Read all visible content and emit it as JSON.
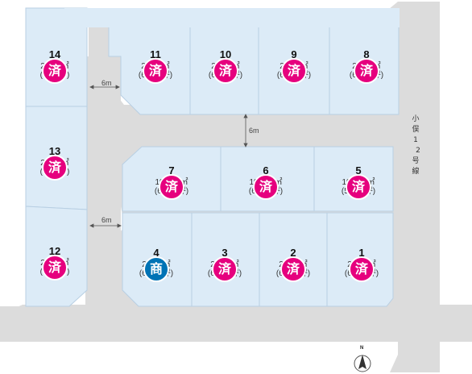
{
  "colors": {
    "lot_fill": "#dcebf7",
    "lot_stroke": "#b8cfe3",
    "road": "#dcdcdc",
    "sold_badge": "#e6007e",
    "commercial_badge": "#0073b5"
  },
  "road_labels": {
    "west_road": "6m",
    "lower_west_road": "6m",
    "center_road": "6m"
  },
  "street_name": [
    "小",
    "俣",
    "1",
    "2",
    "号",
    "線"
  ],
  "compass": {
    "label": "N",
    "icon": "north-arrow-icon"
  },
  "lots": [
    {
      "number": "14",
      "area_line1": "2　　㎡",
      "area_line2": "(　　坪)",
      "status": "済",
      "status_type": "sold"
    },
    {
      "number": "13",
      "area_line1": "2　　㎡",
      "area_line2": "(　　坪)",
      "status": "済",
      "status_type": "sold"
    },
    {
      "number": "12",
      "area_line1": "2　　㎡",
      "area_line2": "(　　坪)",
      "status": "済",
      "status_type": "sold"
    },
    {
      "number": "11",
      "area_line1": "2　　㎡",
      "area_line2": "(6　　坪)",
      "status": "済",
      "status_type": "sold"
    },
    {
      "number": "10",
      "area_line1": "2　　㎡",
      "area_line2": "(6　　坪)",
      "status": "済",
      "status_type": "sold"
    },
    {
      "number": "9",
      "area_line1": "2　　㎡",
      "area_line2": "(6　　坪)",
      "status": "済",
      "status_type": "sold"
    },
    {
      "number": "8",
      "area_line1": "2　　㎡",
      "area_line2": "(6　　坪)",
      "status": "済",
      "status_type": "sold"
    },
    {
      "number": "7",
      "area_line1": "19　　㎡",
      "area_line2": "(6　　坪)",
      "status": "済",
      "status_type": "sold"
    },
    {
      "number": "6",
      "area_line1": "19　　㎡",
      "area_line2": "(6　　坪)",
      "status": "済",
      "status_type": "sold"
    },
    {
      "number": "5",
      "area_line1": "19　　㎡",
      "area_line2": "(5　　坪)",
      "status": "済",
      "status_type": "sold"
    },
    {
      "number": "4",
      "area_line1": "2　　㎡",
      "area_line2": "(6　　坪)",
      "status": "商",
      "status_type": "commercial"
    },
    {
      "number": "3",
      "area_line1": "2　　㎡",
      "area_line2": "(6　　坪)",
      "status": "済",
      "status_type": "sold"
    },
    {
      "number": "2",
      "area_line1": "2　　㎡",
      "area_line2": "(6　　坪)",
      "status": "済",
      "status_type": "sold"
    },
    {
      "number": "1",
      "area_line1": "2　　㎡",
      "area_line2": "(6　　坪)",
      "status": "済",
      "status_type": "sold"
    }
  ]
}
